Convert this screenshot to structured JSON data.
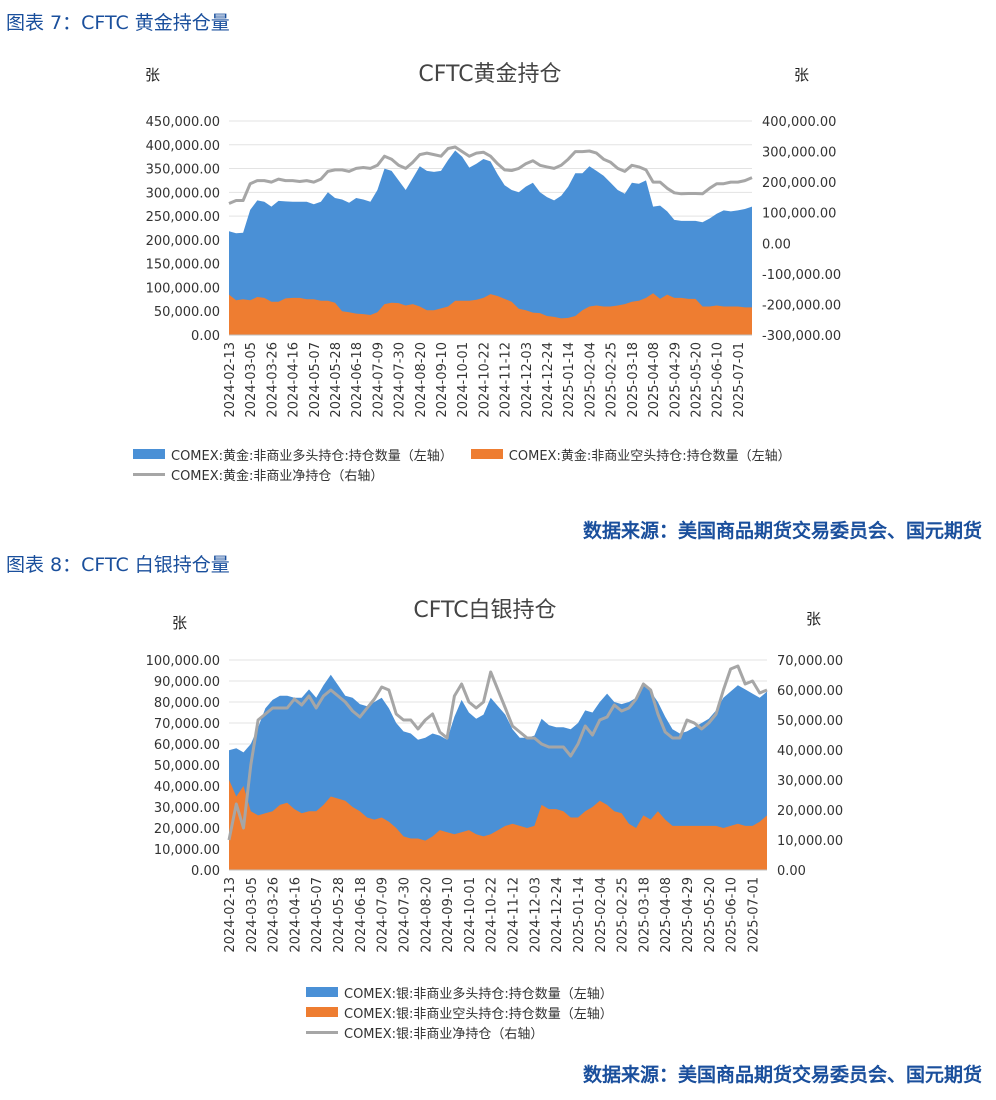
{
  "figures": [
    {
      "label": "图表 7：CFTC 黄金持仓量",
      "source": "数据来源：美国商品期货交易委员会、国元期货",
      "legend": [
        "COMEX:黄金:非商业多头持仓:持仓数量（左轴）",
        "COMEX:黄金:非商业空头持仓:持仓数量（左轴）",
        "COMEX:黄金:非商业净持仓（右轴）"
      ]
    },
    {
      "label": "图表 8：CFTC 白银持仓量",
      "source": "数据来源：美国商品期货交易委员会、国元期货",
      "legend": [
        "COMEX:银:非商业多头持仓:持仓数量（左轴）",
        "COMEX:银:非商业空头持仓:持仓数量（左轴）",
        "COMEX:银:非商业净持仓（右轴）"
      ]
    }
  ],
  "colors": {
    "long": "#4a90d6",
    "short": "#ee7d31",
    "net": "#a6a6a6",
    "accent": "#1a4f9c"
  },
  "chart_data": [
    {
      "type": "area",
      "title": "CFTC黄金持仓",
      "ylabel": "张",
      "y2label": "张",
      "ylim": [
        0,
        450000
      ],
      "y2lim": [
        -300000,
        400000
      ],
      "yticks": [
        "450,000.00",
        "400,000.00",
        "350,000.00",
        "300,000.00",
        "250,000.00",
        "200,000.00",
        "150,000.00",
        "100,000.00",
        "50,000.00",
        "0.00"
      ],
      "y2ticks": [
        "400,000.00",
        "300,000.00",
        "200,000.00",
        "100,000.00",
        "0.00",
        "-100,000.00",
        "-200,000.00",
        "-300,000.00"
      ],
      "xticks": [
        "2024-02-13",
        "2024-03-05",
        "2024-03-26",
        "2024-04-16",
        "2024-05-07",
        "2024-05-28",
        "2024-06-18",
        "2024-07-09",
        "2024-07-30",
        "2024-08-20",
        "2024-09-10",
        "2024-10-01",
        "2024-10-22",
        "2024-11-12",
        "2024-12-03",
        "2024-12-24",
        "2025-01-14",
        "2025-02-04",
        "2025-02-25",
        "2025-03-18",
        "2025-04-08",
        "2025-04-29",
        "2025-05-20",
        "2025-06-10",
        "2025-07-01"
      ],
      "series": [
        {
          "name": "COMEX:黄金:非商业多头持仓:持仓数量（左轴）",
          "axis": "left",
          "style": "area",
          "values": [
            218000,
            214000,
            215000,
            263000,
            283000,
            280000,
            270000,
            282000,
            281000,
            280000,
            280000,
            280000,
            275000,
            280000,
            300000,
            288000,
            285000,
            278000,
            288000,
            285000,
            280000,
            305000,
            350000,
            345000,
            325000,
            305000,
            330000,
            355000,
            345000,
            343000,
            345000,
            368000,
            388000,
            375000,
            352000,
            360000,
            370000,
            365000,
            338000,
            315000,
            305000,
            300000,
            312000,
            320000,
            300000,
            290000,
            283000,
            293000,
            312000,
            340000,
            340000,
            355000,
            345000,
            335000,
            320000,
            305000,
            297000,
            320000,
            318000,
            325000,
            270000,
            272000,
            260000,
            242000,
            240000,
            240000,
            240000,
            237000,
            245000,
            255000,
            262000,
            260000,
            262000,
            265000,
            270000
          ]
        },
        {
          "name": "COMEX:黄金:非商业空头持仓:持仓数量（左轴）",
          "axis": "left",
          "style": "area",
          "values": [
            85000,
            73000,
            75000,
            73000,
            80000,
            78000,
            70000,
            70000,
            77000,
            78000,
            78000,
            75000,
            75000,
            72000,
            72000,
            68000,
            50000,
            48000,
            45000,
            44000,
            42000,
            48000,
            65000,
            68000,
            67000,
            62000,
            65000,
            60000,
            52000,
            52000,
            56000,
            60000,
            72000,
            72000,
            72000,
            74000,
            78000,
            86000,
            82000,
            76000,
            70000,
            55000,
            52000,
            47000,
            46000,
            40000,
            38000,
            35000,
            36000,
            40000,
            52000,
            60000,
            62000,
            60000,
            60000,
            62000,
            65000,
            70000,
            72000,
            78000,
            88000,
            76000,
            85000,
            78000,
            78000,
            76000,
            76000,
            60000,
            60000,
            62000,
            60000,
            60000,
            60000,
            58000,
            58000
          ]
        },
        {
          "name": "COMEX:黄金:非商业净持仓（右轴）",
          "axis": "right",
          "style": "line",
          "values": [
            130000,
            140000,
            140000,
            195000,
            205000,
            205000,
            200000,
            210000,
            205000,
            205000,
            202000,
            205000,
            200000,
            210000,
            235000,
            240000,
            240000,
            235000,
            245000,
            248000,
            245000,
            255000,
            285000,
            275000,
            255000,
            245000,
            265000,
            290000,
            295000,
            290000,
            285000,
            310000,
            315000,
            300000,
            285000,
            295000,
            298000,
            285000,
            260000,
            240000,
            238000,
            245000,
            260000,
            270000,
            255000,
            250000,
            245000,
            255000,
            275000,
            300000,
            300000,
            302000,
            295000,
            275000,
            265000,
            245000,
            235000,
            255000,
            250000,
            240000,
            200000,
            200000,
            180000,
            165000,
            162000,
            163000,
            163000,
            162000,
            180000,
            195000,
            195000,
            200000,
            200000,
            205000,
            215000
          ]
        }
      ]
    },
    {
      "type": "area",
      "title": "CFTC白银持仓",
      "ylabel": "张",
      "y2label": "张",
      "ylim": [
        0,
        100000
      ],
      "y2lim": [
        0,
        70000
      ],
      "yticks": [
        "100,000.00",
        "90,000.00",
        "80,000.00",
        "70,000.00",
        "60,000.00",
        "50,000.00",
        "40,000.00",
        "30,000.00",
        "20,000.00",
        "10,000.00",
        "0.00"
      ],
      "y2ticks": [
        "70,000.00",
        "60,000.00",
        "50,000.00",
        "40,000.00",
        "30,000.00",
        "20,000.00",
        "10,000.00",
        "0.00"
      ],
      "xticks": [
        "2024-02-13",
        "2024-03-05",
        "2024-03-26",
        "2024-04-16",
        "2024-05-07",
        "2024-05-28",
        "2024-06-18",
        "2024-07-09",
        "2024-07-30",
        "2024-08-20",
        "2024-09-10",
        "2024-10-01",
        "2024-10-22",
        "2024-11-12",
        "2024-12-03",
        "2024-12-24",
        "2025-01-14",
        "2025-02-04",
        "2025-02-25",
        "2025-03-18",
        "2025-04-08",
        "2025-04-29",
        "2025-05-20",
        "2025-06-10",
        "2025-07-01"
      ],
      "series": [
        {
          "name": "COMEX:银:非商业多头持仓:持仓数量（左轴）",
          "axis": "left",
          "style": "area",
          "values": [
            57000,
            58000,
            56000,
            60000,
            68000,
            77000,
            81000,
            83000,
            83000,
            82000,
            82000,
            86000,
            82000,
            88000,
            93000,
            88000,
            83000,
            82000,
            79000,
            78000,
            80000,
            82000,
            77000,
            70000,
            66000,
            65000,
            62000,
            63000,
            65000,
            64000,
            62000,
            73000,
            81000,
            75000,
            72000,
            74000,
            82000,
            78000,
            74000,
            67000,
            63000,
            63000,
            64000,
            72000,
            69000,
            68000,
            68000,
            67000,
            70000,
            76000,
            75000,
            80000,
            84000,
            80000,
            79000,
            80000,
            82000,
            88000,
            85000,
            80000,
            73000,
            67000,
            65000,
            66000,
            68000,
            70000,
            72000,
            76000,
            82000,
            85000,
            88000,
            86000,
            84000,
            82000,
            85000
          ]
        },
        {
          "name": "COMEX:银:非商业空头持仓:持仓数量（左轴）",
          "axis": "left",
          "style": "area",
          "values": [
            43000,
            35000,
            40000,
            28000,
            26000,
            27000,
            28000,
            31000,
            32000,
            29000,
            27000,
            28000,
            28000,
            31000,
            35000,
            34000,
            33000,
            30000,
            28000,
            25000,
            24000,
            25000,
            23000,
            20000,
            16000,
            15000,
            15000,
            14000,
            16000,
            19000,
            18000,
            17000,
            18000,
            19000,
            17000,
            16000,
            17000,
            19000,
            21000,
            22000,
            21000,
            20000,
            21000,
            31000,
            29000,
            29000,
            28000,
            25000,
            25000,
            28000,
            30000,
            33000,
            31000,
            28000,
            27000,
            22000,
            20000,
            26000,
            24000,
            28000,
            24000,
            21000,
            21000,
            21000,
            21000,
            21000,
            21000,
            21000,
            20000,
            21000,
            22000,
            21000,
            21000,
            23000,
            26000
          ]
        },
        {
          "name": "COMEX:银:非商业净持仓（右轴）",
          "axis": "right",
          "style": "line",
          "values": [
            10000,
            22000,
            14000,
            35000,
            50000,
            52000,
            54000,
            54000,
            54000,
            57000,
            55000,
            58000,
            54000,
            58000,
            60000,
            58000,
            56000,
            53000,
            51000,
            54000,
            57000,
            61000,
            60000,
            52000,
            50000,
            50000,
            47000,
            50000,
            52000,
            46000,
            44000,
            58000,
            62000,
            56000,
            54000,
            56000,
            66000,
            60000,
            54000,
            48000,
            46000,
            44000,
            44000,
            42000,
            41000,
            41000,
            41000,
            38000,
            42000,
            48000,
            45000,
            50000,
            51000,
            55000,
            53000,
            54000,
            57000,
            62000,
            60000,
            52000,
            46000,
            44000,
            44000,
            50000,
            49000,
            47000,
            49000,
            52000,
            60000,
            67000,
            68000,
            62000,
            63000,
            59000,
            60000
          ]
        }
      ]
    }
  ]
}
